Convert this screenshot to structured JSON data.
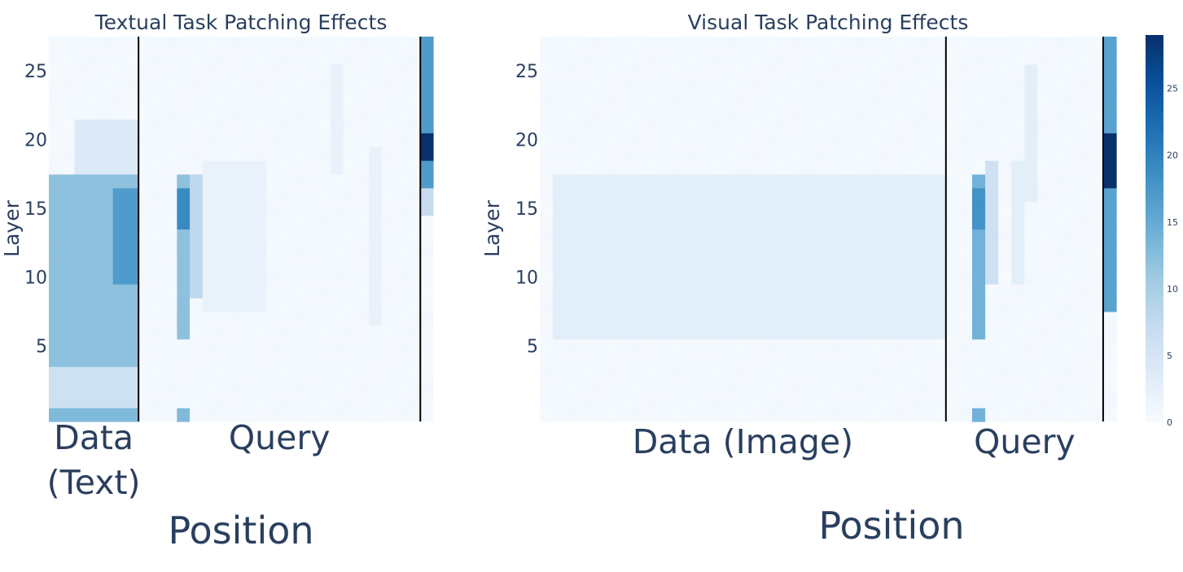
{
  "colors": {
    "text": "#2a3f5f",
    "divider": "#000000",
    "colorscale": [
      "#f7fbff",
      "#deebf7",
      "#c6dbef",
      "#9ecae1",
      "#6baed6",
      "#4292c6",
      "#2171b5",
      "#08519c",
      "#08306b"
    ]
  },
  "chart_data": [
    {
      "type": "heatmap",
      "title": "Textual Task Patching Effects",
      "ylabel": "Layer",
      "xlabel": "Position",
      "yticks": [
        5,
        10,
        15,
        20,
        25
      ],
      "ylim": [
        0,
        27
      ],
      "n_positions": 30,
      "segment_boundaries": [
        7,
        29
      ],
      "segments": [
        {
          "label_lines": [
            "Data",
            "(Text)"
          ]
        },
        {
          "label_lines": [
            "Query"
          ]
        }
      ],
      "zlim": [
        0,
        29
      ],
      "hotspots": [
        {
          "x0": 0,
          "x1": 6,
          "y0": 4,
          "y1": 17,
          "z": 12
        },
        {
          "x0": 2,
          "x1": 6,
          "y0": 18,
          "y1": 21,
          "z": 4
        },
        {
          "x0": 5,
          "x1": 6,
          "y0": 10,
          "y1": 16,
          "z": 17
        },
        {
          "x0": 0,
          "x1": 6,
          "y0": 0,
          "y1": 0,
          "z": 13
        },
        {
          "x0": 0,
          "x1": 6,
          "y0": 1,
          "y1": 3,
          "z": 6
        },
        {
          "x0": 10,
          "x1": 10,
          "y0": 6,
          "y1": 17,
          "z": 12
        },
        {
          "x0": 10,
          "x1": 10,
          "y0": 14,
          "y1": 16,
          "z": 19
        },
        {
          "x0": 11,
          "x1": 11,
          "y0": 9,
          "y1": 17,
          "z": 8
        },
        {
          "x0": 10,
          "x1": 10,
          "y0": 0,
          "y1": 0,
          "z": 13
        },
        {
          "x0": 12,
          "x1": 16,
          "y0": 8,
          "y1": 18,
          "z": 2
        },
        {
          "x0": 22,
          "x1": 22,
          "y0": 18,
          "y1": 25,
          "z": 2
        },
        {
          "x0": 25,
          "x1": 25,
          "y0": 7,
          "y1": 19,
          "z": 2
        },
        {
          "x0": 29,
          "x1": 29,
          "y0": 17,
          "y1": 27,
          "z": 17
        },
        {
          "x0": 29,
          "x1": 29,
          "y0": 19,
          "y1": 20,
          "z": 29
        },
        {
          "x0": 29,
          "x1": 29,
          "y0": 15,
          "y1": 16,
          "z": 7
        }
      ]
    },
    {
      "type": "heatmap",
      "title": "Visual Task Patching Effects",
      "ylabel": "Layer",
      "xlabel": "Position",
      "yticks": [
        5,
        10,
        15,
        20,
        25
      ],
      "ylim": [
        0,
        27
      ],
      "n_positions": 44,
      "segment_boundaries": [
        31,
        43
      ],
      "segments": [
        {
          "label_lines": [
            "Data (Image)"
          ]
        },
        {
          "label_lines": [
            "Query"
          ]
        }
      ],
      "zlim": [
        0,
        29
      ],
      "colorbar_ticks": [
        0,
        5,
        10,
        15,
        20,
        25
      ],
      "hotspots": [
        {
          "x0": 1,
          "x1": 30,
          "y0": 6,
          "y1": 17,
          "z": 3
        },
        {
          "x0": 33,
          "x1": 33,
          "y0": 6,
          "y1": 17,
          "z": 14
        },
        {
          "x0": 33,
          "x1": 33,
          "y0": 14,
          "y1": 16,
          "z": 18
        },
        {
          "x0": 33,
          "x1": 33,
          "y0": 0,
          "y1": 0,
          "z": 14
        },
        {
          "x0": 34,
          "x1": 34,
          "y0": 10,
          "y1": 18,
          "z": 6
        },
        {
          "x0": 36,
          "x1": 36,
          "y0": 10,
          "y1": 18,
          "z": 3
        },
        {
          "x0": 37,
          "x1": 37,
          "y0": 16,
          "y1": 25,
          "z": 3
        },
        {
          "x0": 43,
          "x1": 43,
          "y0": 8,
          "y1": 27,
          "z": 16
        },
        {
          "x0": 43,
          "x1": 43,
          "y0": 17,
          "y1": 20,
          "z": 29
        }
      ]
    }
  ]
}
